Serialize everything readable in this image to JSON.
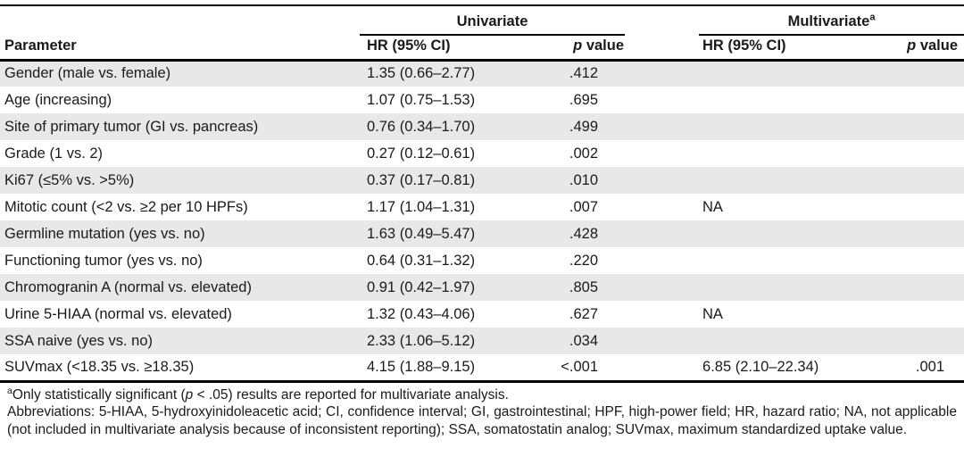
{
  "table": {
    "col_groups": {
      "univariate_label": "Univariate",
      "multivariate_label": "Multivariate",
      "multivariate_superscript": "a"
    },
    "columns": {
      "parameter": "Parameter",
      "hr_label": "HR (95% CI)",
      "p_italic": "p",
      "p_rest": " value"
    },
    "rows": [
      {
        "parameter": "Gender (male vs. female)",
        "uni_hr": "1.35 (0.66–2.77)",
        "uni_p": ".412",
        "multi_hr": "",
        "multi_p": ""
      },
      {
        "parameter": "Age (increasing)",
        "uni_hr": "1.07 (0.75–1.53)",
        "uni_p": ".695",
        "multi_hr": "",
        "multi_p": ""
      },
      {
        "parameter": "Site of primary tumor (GI vs. pancreas)",
        "uni_hr": "0.76 (0.34–1.70)",
        "uni_p": ".499",
        "multi_hr": "",
        "multi_p": ""
      },
      {
        "parameter": "Grade (1 vs. 2)",
        "uni_hr": "0.27 (0.12–0.61)",
        "uni_p": ".002",
        "multi_hr": "",
        "multi_p": ""
      },
      {
        "parameter": "Ki67 (≤5% vs. >5%)",
        "uni_hr": "0.37 (0.17–0.81)",
        "uni_p": ".010",
        "multi_hr": "",
        "multi_p": ""
      },
      {
        "parameter": "Mitotic count (<2 vs. ≥2 per 10 HPFs)",
        "uni_hr": "1.17 (1.04–1.31)",
        "uni_p": ".007",
        "multi_hr": "NA",
        "multi_p": ""
      },
      {
        "parameter": "Germline mutation (yes vs. no)",
        "uni_hr": "1.63 (0.49–5.47)",
        "uni_p": ".428",
        "multi_hr": "",
        "multi_p": ""
      },
      {
        "parameter": "Functioning tumor (yes vs. no)",
        "uni_hr": "0.64 (0.31–1.32)",
        "uni_p": ".220",
        "multi_hr": "",
        "multi_p": ""
      },
      {
        "parameter": "Chromogranin A (normal vs. elevated)",
        "uni_hr": "0.91 (0.42–1.97)",
        "uni_p": ".805",
        "multi_hr": "",
        "multi_p": ""
      },
      {
        "parameter": "Urine 5-HIAA (normal vs. elevated)",
        "uni_hr": "1.32 (0.43–4.06)",
        "uni_p": ".627",
        "multi_hr": "NA",
        "multi_p": ""
      },
      {
        "parameter": "SSA naive (yes vs. no)",
        "uni_hr": "2.33 (1.06–5.12)",
        "uni_p": ".034",
        "multi_hr": "",
        "multi_p": ""
      },
      {
        "parameter": "SUVmax (<18.35 vs. ≥18.35)",
        "uni_hr": "4.15 (1.88–9.15)",
        "uni_p": "<.001",
        "multi_hr": "6.85 (2.10–22.34)",
        "multi_p": ".001"
      }
    ]
  },
  "footnotes": {
    "significance_superscript": "a",
    "significance_pre": "Only statistically significant (",
    "significance_p": "p",
    "significance_post": " < .05) results are reported for multivariate analysis.",
    "abbreviations": "Abbreviations: 5-HIAA, 5-hydroxyinidoleacetic acid; CI, confidence interval; GI, gastrointestinal; HPF, high-power field; HR, hazard ratio; NA, not applicable (not included in multivariate analysis because of inconsistent reporting); SSA, somatostatin analog; SUVmax, maximum standardized uptake value."
  },
  "colors": {
    "stripe": "#e8e8e8",
    "rule": "#000000",
    "text": "#1a1a1a"
  }
}
